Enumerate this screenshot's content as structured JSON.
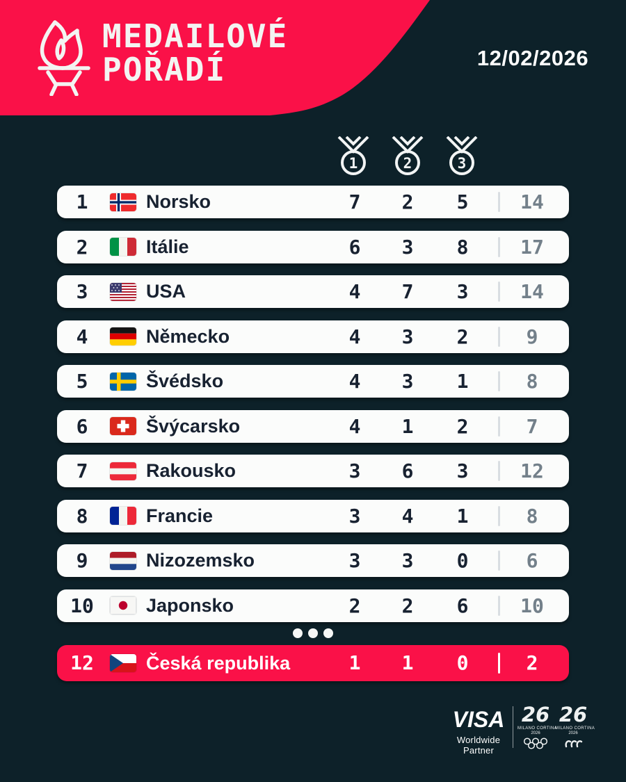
{
  "page": {
    "background": "#0d2129",
    "accent": "#fa1148",
    "row_background": "#fbfcfb",
    "ink": "#182231",
    "muted": "#73808a"
  },
  "header": {
    "title_line1": "MEDAILOVÉ",
    "title_line2": "POŘADÍ",
    "date": "12/02/2026"
  },
  "medal_headers": [
    "1",
    "2",
    "3"
  ],
  "table": {
    "rows": [
      {
        "rank": "1",
        "country": "Norsko",
        "flag": "no",
        "flag_name": "norway-flag",
        "gold": "7",
        "silver": "2",
        "bronze": "5",
        "total": "14"
      },
      {
        "rank": "2",
        "country": "Itálie",
        "flag": "it",
        "flag_name": "italy-flag",
        "gold": "6",
        "silver": "3",
        "bronze": "8",
        "total": "17"
      },
      {
        "rank": "3",
        "country": "USA",
        "flag": "us",
        "flag_name": "usa-flag",
        "gold": "4",
        "silver": "7",
        "bronze": "3",
        "total": "14"
      },
      {
        "rank": "4",
        "country": "Německo",
        "flag": "de",
        "flag_name": "germany-flag",
        "gold": "4",
        "silver": "3",
        "bronze": "2",
        "total": "9"
      },
      {
        "rank": "5",
        "country": "Švédsko",
        "flag": "se",
        "flag_name": "sweden-flag",
        "gold": "4",
        "silver": "3",
        "bronze": "1",
        "total": "8"
      },
      {
        "rank": "6",
        "country": "Švýcarsko",
        "flag": "ch",
        "flag_name": "switzerland-flag",
        "gold": "4",
        "silver": "1",
        "bronze": "2",
        "total": "7"
      },
      {
        "rank": "7",
        "country": "Rakousko",
        "flag": "at",
        "flag_name": "austria-flag",
        "gold": "3",
        "silver": "6",
        "bronze": "3",
        "total": "12"
      },
      {
        "rank": "8",
        "country": "Francie",
        "flag": "fr",
        "flag_name": "france-flag",
        "gold": "3",
        "silver": "4",
        "bronze": "1",
        "total": "8"
      },
      {
        "rank": "9",
        "country": "Nizozemsko",
        "flag": "nl",
        "flag_name": "netherlands-flag",
        "gold": "3",
        "silver": "3",
        "bronze": "0",
        "total": "6"
      },
      {
        "rank": "10",
        "country": "Japonsko",
        "flag": "jp",
        "flag_name": "japan-flag",
        "gold": "2",
        "silver": "2",
        "bronze": "6",
        "total": "10"
      }
    ],
    "highlight": {
      "rank": "12",
      "country": "Česká republika",
      "flag": "cz",
      "flag_name": "czech-republic-flag",
      "gold": "1",
      "silver": "1",
      "bronze": "0",
      "total": "2"
    }
  },
  "ellipsis_dots": 3,
  "footer": {
    "visa": "VISA",
    "partner": "Worldwide Partner",
    "logo_glyph": "26",
    "milano": "MILANO CORTINA",
    "year": "2026"
  },
  "chart_data": {
    "type": "table",
    "title": "Medailové pořadí",
    "date": "12/02/2026",
    "columns": [
      "rank",
      "country",
      "gold",
      "silver",
      "bronze",
      "total"
    ],
    "rows": [
      [
        1,
        "Norsko",
        7,
        2,
        5,
        14
      ],
      [
        2,
        "Itálie",
        6,
        3,
        8,
        17
      ],
      [
        3,
        "USA",
        4,
        7,
        3,
        14
      ],
      [
        4,
        "Německo",
        4,
        3,
        2,
        9
      ],
      [
        5,
        "Švédsko",
        4,
        3,
        1,
        8
      ],
      [
        6,
        "Švýcarsko",
        4,
        1,
        2,
        7
      ],
      [
        7,
        "Rakousko",
        3,
        6,
        3,
        12
      ],
      [
        8,
        "Francie",
        3,
        4,
        1,
        8
      ],
      [
        9,
        "Nizozemsko",
        3,
        3,
        0,
        6
      ],
      [
        10,
        "Japonsko",
        2,
        2,
        6,
        10
      ],
      [
        12,
        "Česká republika",
        1,
        1,
        0,
        2
      ]
    ],
    "notes": "Rows 11 omitted in graphic (ellipsis). Row 12 highlighted in accent pink."
  }
}
